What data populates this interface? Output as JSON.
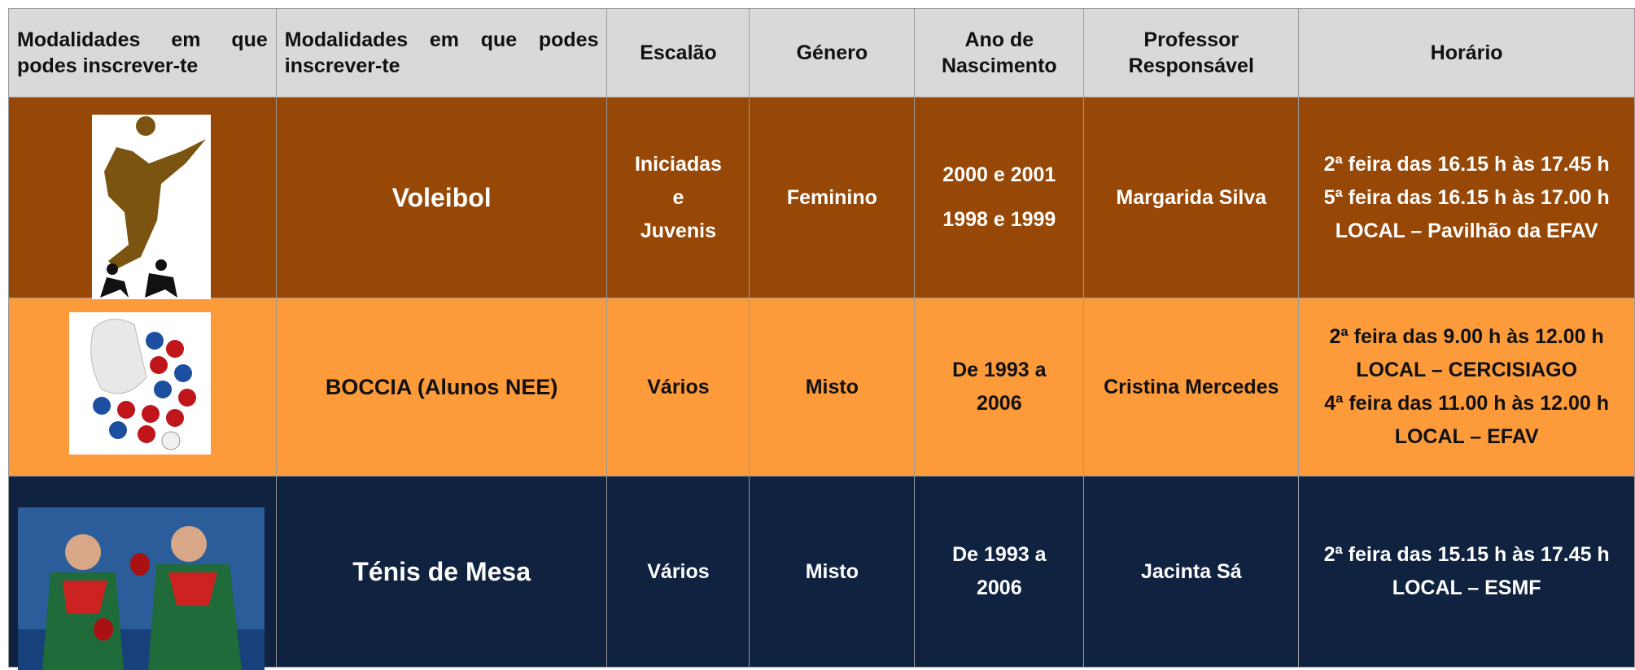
{
  "table": {
    "header": [
      "Modalidades em que podes inscrever-te",
      "Modalidades em que podes inscrever-te",
      "Escalão",
      "Género",
      "Ano de Nascimento",
      "Professor Responsável",
      "Horário"
    ],
    "rows": [
      {
        "modalidade": "Voleibol",
        "escalao": [
          "Iniciadas",
          "e",
          "Juvenis"
        ],
        "genero": "Feminino",
        "ano": [
          "2000 e 2001",
          "1998 e 1999"
        ],
        "professor": "Margarida Silva",
        "horario": [
          "2ª feira das 16.15 h às 17.45 h",
          "5ª feira das 16.15 h às 17.00 h",
          "LOCAL – Pavilhão da EFAV"
        ]
      },
      {
        "modalidade": "BOCCIA (Alunos NEE)",
        "escalao": [
          "Vários"
        ],
        "genero": "Misto",
        "ano": [
          "De 1993 a",
          "2006"
        ],
        "professor": "Cristina Mercedes",
        "horario": [
          "2ª feira das 9.00 h às 12.00 h",
          "LOCAL – CERCISIAGO",
          "4ª feira das 11.00 h às 12.00 h",
          "LOCAL – EFAV"
        ]
      },
      {
        "modalidade": "Ténis de Mesa",
        "escalao": [
          "Vários"
        ],
        "genero": "Misto",
        "ano": [
          "De 1993 a",
          "2006"
        ],
        "professor": "Jacinta Sá",
        "horario": [
          "2ª feira das 15.15 h às 17.45 h",
          "LOCAL – ESMF"
        ]
      }
    ]
  }
}
